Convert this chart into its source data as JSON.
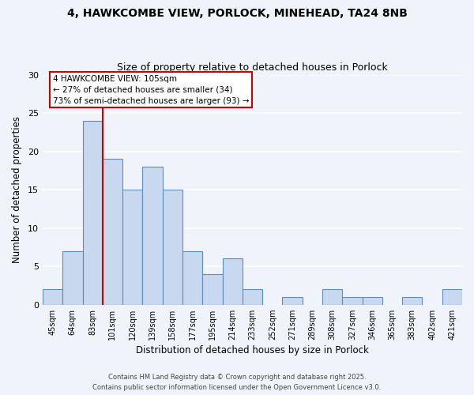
{
  "title1": "4, HAWKCOMBE VIEW, PORLOCK, MINEHEAD, TA24 8NB",
  "title2": "Size of property relative to detached houses in Porlock",
  "xlabel": "Distribution of detached houses by size in Porlock",
  "ylabel": "Number of detached properties",
  "bar_color": "#c8d8ef",
  "bar_edge_color": "#5a8fc0",
  "categories": [
    "45sqm",
    "64sqm",
    "83sqm",
    "101sqm",
    "120sqm",
    "139sqm",
    "158sqm",
    "177sqm",
    "195sqm",
    "214sqm",
    "233sqm",
    "252sqm",
    "271sqm",
    "289sqm",
    "308sqm",
    "327sqm",
    "346sqm",
    "365sqm",
    "383sqm",
    "402sqm",
    "421sqm"
  ],
  "values": [
    2,
    7,
    24,
    19,
    15,
    18,
    15,
    7,
    4,
    6,
    2,
    0,
    1,
    0,
    2,
    1,
    1,
    0,
    1,
    0,
    2
  ],
  "ylim": [
    0,
    30
  ],
  "vline_color": "#cc0000",
  "annotation_title": "4 HAWKCOMBE VIEW: 105sqm",
  "annotation_line1": "← 27% of detached houses are smaller (34)",
  "annotation_line2": "73% of semi-detached houses are larger (93) →",
  "annotation_box_color": "#ffffff",
  "annotation_box_edge": "#cc0000",
  "footer1": "Contains HM Land Registry data © Crown copyright and database right 2025.",
  "footer2": "Contains public sector information licensed under the Open Government Licence v3.0.",
  "background_color": "#f0f4fa",
  "grid_color": "#ffffff"
}
